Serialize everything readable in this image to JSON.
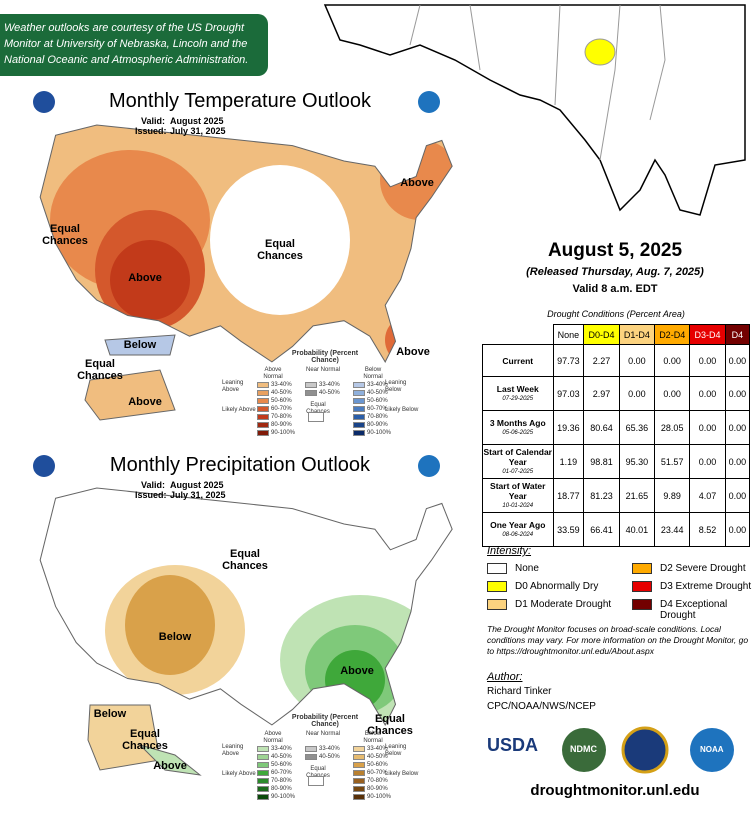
{
  "credit": "Weather outlooks are courtesy of the US Drought Monitor at University of Nebraska, Lincoln and the National Oceanic and Atmospheric Administration.",
  "outlooks": [
    {
      "title": "Monthly Temperature Outlook",
      "valid_label": "Valid:",
      "valid": "August 2025",
      "issued_label": "Issued:",
      "issued": "July 31, 2025",
      "map_labels": [
        "Equal Chances",
        "Above",
        "Equal Chances",
        "Above",
        "Above",
        "Below",
        "Equal Chances",
        "Above"
      ],
      "legend": {
        "title": "Probability (Percent Chance)",
        "columns": [
          "Above Normal",
          "Near Normal",
          "Below Normal"
        ],
        "left_side": [
          "Leaning Above",
          "Likely Above"
        ],
        "right_side": [
          "Leaning Below",
          "Likely Below"
        ],
        "center": "Equal Chances",
        "above_ranges": [
          "33-40%",
          "40-50%",
          "50-60%",
          "60-70%",
          "70-80%",
          "80-90%",
          "90-100%"
        ],
        "near_ranges": [
          "33-40%",
          "40-50%"
        ],
        "below_ranges": [
          "33-40%",
          "40-50%",
          "50-60%",
          "60-70%",
          "70-80%",
          "80-90%",
          "90-100%"
        ]
      }
    },
    {
      "title": "Monthly Precipitation Outlook",
      "valid_label": "Valid:",
      "valid": "August 2025",
      "issued_label": "Issued:",
      "issued": "July 31, 2025",
      "map_labels": [
        "Equal Chances",
        "Below",
        "Above",
        "Below",
        "Equal Chances",
        "Equal Chances",
        "Above"
      ],
      "legend": {
        "title": "Probability (Percent Chance)",
        "columns": [
          "Above Normal",
          "Near Normal",
          "Below Normal"
        ],
        "left_side": [
          "Leaning Above",
          "Likely Above"
        ],
        "right_side": [
          "Leaning Below",
          "Likely Below"
        ],
        "center": "Equal Chances",
        "above_ranges": [
          "33-40%",
          "40-50%",
          "50-60%",
          "60-70%",
          "70-80%",
          "80-90%",
          "90-100%"
        ],
        "near_ranges": [
          "33-40%",
          "40-50%"
        ],
        "below_ranges": [
          "33-40%",
          "40-50%",
          "50-60%",
          "60-70%",
          "70-80%",
          "80-90%",
          "90-100%"
        ]
      }
    }
  ],
  "header": {
    "date": "August 5, 2025",
    "released": "(Released Thursday, Aug. 7, 2025)",
    "valid": "Valid 8 a.m. EDT"
  },
  "table": {
    "caption": "Drought Conditions (Percent Area)",
    "columns": [
      "None",
      "D0-D4",
      "D1-D4",
      "D2-D4",
      "D3-D4",
      "D4"
    ],
    "rows": [
      {
        "label": "Current",
        "values": [
          "97.73",
          "2.27",
          "0.00",
          "0.00",
          "0.00",
          "0.00"
        ]
      },
      {
        "label": "Last Week",
        "date": "07-29-2025",
        "values": [
          "97.03",
          "2.97",
          "0.00",
          "0.00",
          "0.00",
          "0.00"
        ]
      },
      {
        "label": "3 Months Ago",
        "date": "05-06-2025",
        "values": [
          "19.36",
          "80.64",
          "65.36",
          "28.05",
          "0.00",
          "0.00"
        ]
      },
      {
        "label": "Start of Calendar Year",
        "date": "01-07-2025",
        "values": [
          "1.19",
          "98.81",
          "95.30",
          "51.57",
          "0.00",
          "0.00"
        ]
      },
      {
        "label": "Start of Water Year",
        "date": "10-01-2024",
        "values": [
          "18.77",
          "81.23",
          "21.65",
          "9.89",
          "4.07",
          "0.00"
        ]
      },
      {
        "label": "One Year Ago",
        "date": "08-06-2024",
        "values": [
          "33.59",
          "66.41",
          "40.01",
          "23.44",
          "8.52",
          "0.00"
        ]
      }
    ]
  },
  "intensity": {
    "title": "Intensity:",
    "items": [
      "None",
      "D0 Abnormally Dry",
      "D1 Moderate Drought",
      "D2 Severe Drought",
      "D3 Extreme Drought",
      "D4 Exceptional Drought"
    ]
  },
  "note": "The Drought Monitor focuses on broad-scale conditions. Local conditions may vary. For more information on the Drought Monitor, go to https://droughtmonitor.unl.edu/About.aspx",
  "author": {
    "label": "Author:",
    "name": "Richard Tinker",
    "org": "CPC/NOAA/NWS/NCEP"
  },
  "logos": [
    "USDA",
    "NDMC",
    "NOAA"
  ],
  "website": "droughtmonitor.unl.edu"
}
